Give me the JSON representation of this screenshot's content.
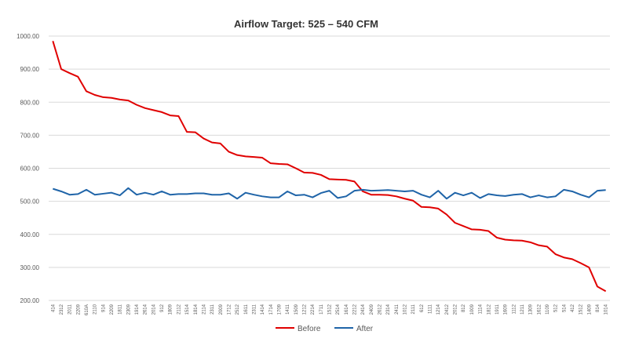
{
  "chart_data": {
    "type": "line",
    "title": "Airflow Target: 525 – 540 CFM",
    "categories": [
      "414",
      "2312",
      "2011",
      "2209",
      "610A",
      "2110",
      "914",
      "2209",
      "1811",
      "2309",
      "1914",
      "2614",
      "2014",
      "912",
      "1809",
      "2112",
      "1514",
      "1814",
      "2114",
      "2311",
      "2009",
      "1712",
      "2512",
      "1611",
      "2311",
      "1414",
      "1714",
      "1709",
      "1411",
      "1509",
      "1212",
      "2214",
      "1711",
      "1512",
      "2514",
      "1614",
      "2212",
      "2414",
      "2409",
      "2612",
      "2314",
      "2411",
      "1012",
      "2111",
      "612",
      "1111",
      "1214",
      "2412",
      "2012",
      "812",
      "1009",
      "1114",
      "1812",
      "1911",
      "1609",
      "1112",
      "1211",
      "1309",
      "1612",
      "1109",
      "512",
      "514",
      "412",
      "1512",
      "1409",
      "814",
      "1014"
    ],
    "series": [
      {
        "name": "Before",
        "color": "#e00000",
        "values": [
          985,
          900,
          888,
          877,
          833,
          822,
          815,
          813,
          808,
          805,
          792,
          782,
          776,
          770,
          760,
          758,
          710,
          709,
          690,
          678,
          675,
          650,
          640,
          636,
          634,
          632,
          615,
          613,
          612,
          600,
          587,
          586,
          580,
          567,
          566,
          565,
          560,
          530,
          520,
          520,
          519,
          515,
          508,
          502,
          483,
          482,
          478,
          460,
          435,
          425,
          415,
          414,
          410,
          390,
          384,
          382,
          381,
          376,
          367,
          363,
          340,
          330,
          325,
          313,
          300,
          242,
          228
        ]
      },
      {
        "name": "After",
        "color": "#1f64a8",
        "values": [
          538,
          530,
          520,
          522,
          535,
          520,
          523,
          526,
          518,
          540,
          520,
          526,
          520,
          530,
          520,
          522,
          522,
          524,
          524,
          520,
          520,
          524,
          508,
          526,
          520,
          515,
          512,
          512,
          530,
          518,
          520,
          512,
          525,
          532,
          510,
          515,
          532,
          535,
          532,
          533,
          534,
          532,
          530,
          532,
          520,
          512,
          532,
          508,
          526,
          518,
          526,
          510,
          522,
          518,
          516,
          520,
          522,
          512,
          518,
          512,
          515,
          535,
          530,
          520,
          512,
          532,
          534
        ]
      }
    ],
    "ylim": [
      200,
      1000
    ],
    "yticks": [
      {
        "value": 200,
        "label": "200.00"
      },
      {
        "value": 300,
        "label": "300.00"
      },
      {
        "value": 400,
        "label": "400.00"
      },
      {
        "value": 500,
        "label": "500.00"
      },
      {
        "value": 600,
        "label": "600.00"
      },
      {
        "value": 700,
        "label": "700.00"
      },
      {
        "value": 800,
        "label": "800.00"
      },
      {
        "value": 900,
        "label": "900.00"
      },
      {
        "value": 1000,
        "label": "1000.00"
      }
    ],
    "grid": true,
    "legend": "bottom"
  }
}
